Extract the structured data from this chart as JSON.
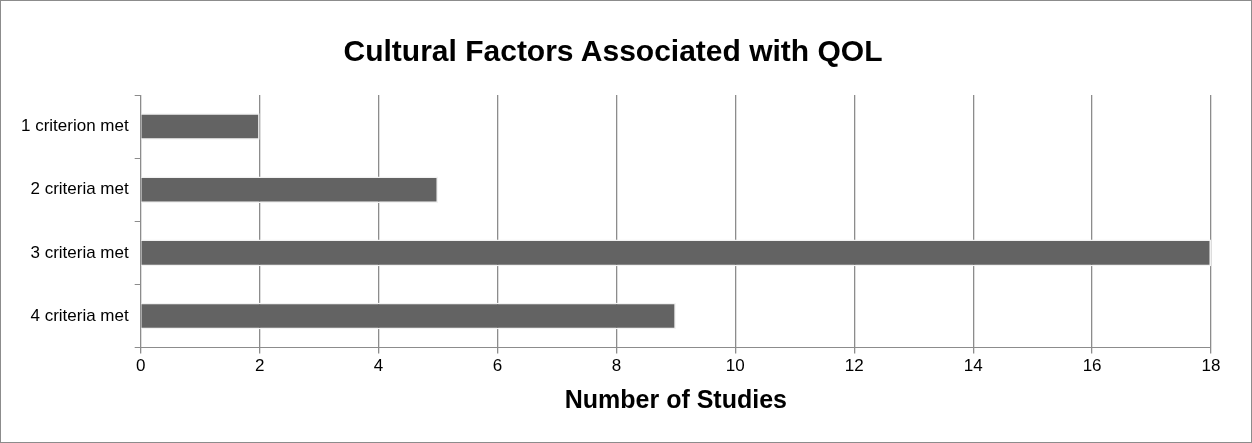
{
  "chart_data": {
    "type": "bar",
    "orientation": "horizontal",
    "title": "Cultural Factors Associated with QOL",
    "xlabel": "Number of Studies",
    "categories": [
      "1 criterion met",
      "2 criteria met",
      "3 criteria met",
      "4 criteria met"
    ],
    "values": [
      2,
      5,
      18,
      9
    ],
    "color": "#636363",
    "xlim": [
      0,
      18
    ],
    "xticks": [
      0,
      2,
      4,
      6,
      8,
      10,
      12,
      14,
      16,
      18
    ],
    "grid": "x",
    "legend": false
  }
}
